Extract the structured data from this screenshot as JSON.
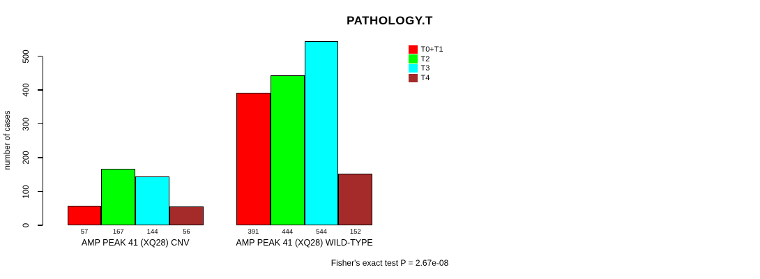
{
  "chart_data": {
    "type": "bar",
    "title": "PATHOLOGY.T",
    "ylabel": "number of cases",
    "ylim": [
      0,
      560
    ],
    "yticks": [
      0,
      100,
      200,
      300,
      400,
      500
    ],
    "grid": false,
    "legend_position": "top-right",
    "categories": [
      "AMP PEAK 41 (XQ28) CNV",
      "AMP PEAK 41 (XQ28) WILD-TYPE"
    ],
    "series": [
      {
        "name": "T0+T1",
        "color": "#FF0000",
        "values": [
          57,
          391
        ]
      },
      {
        "name": "T2",
        "color": "#00FF00",
        "values": [
          167,
          444
        ]
      },
      {
        "name": "T3",
        "color": "#00FFFF",
        "values": [
          144,
          544
        ]
      },
      {
        "name": "T4",
        "color": "#A52A2A",
        "values": [
          56,
          152
        ]
      }
    ],
    "bar_value_labels": [
      [
        57,
        167,
        144,
        56
      ],
      [
        391,
        444,
        544,
        152
      ]
    ],
    "footnote": "Fisher's exact test P = 2.67e-08",
    "colors": {
      "background": "#FFFFFF",
      "axis": "#000000",
      "bar_border": "#000000",
      "text": "#000000"
    }
  }
}
